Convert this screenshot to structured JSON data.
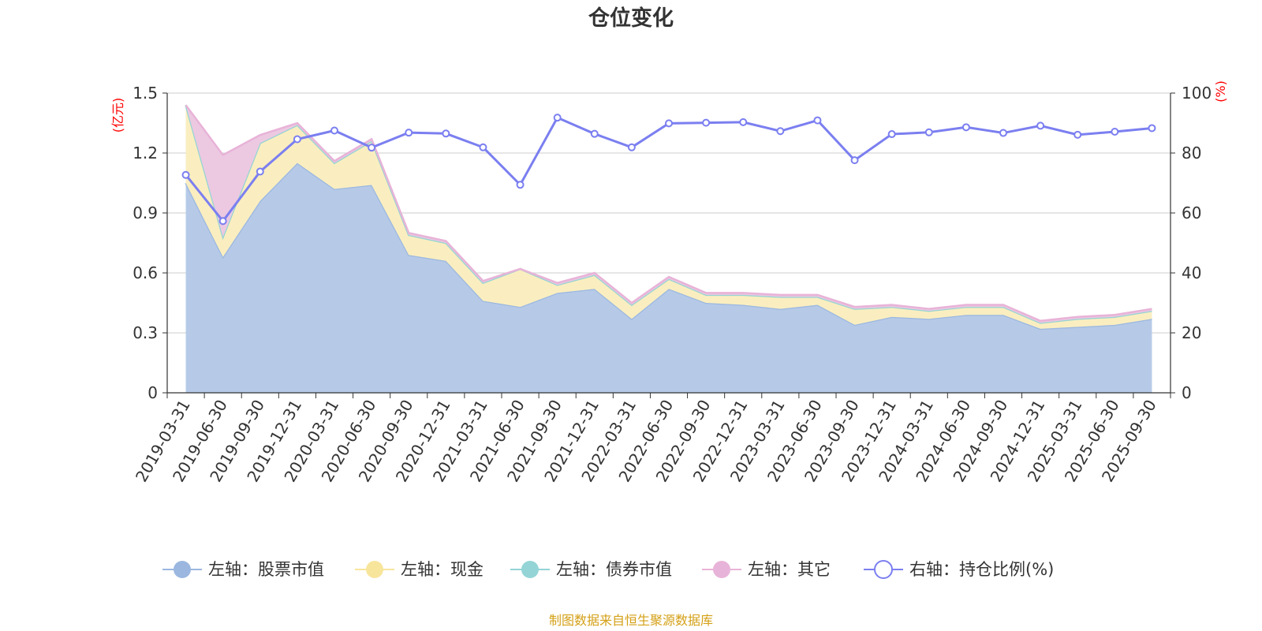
{
  "chart_data": {
    "type": "area",
    "title": "仓位变化",
    "left_axis": {
      "unit": "(亿元)",
      "min": 0,
      "max": 1.5,
      "ticks": [
        "0",
        "0.3",
        "0.6",
        "0.9",
        "1.2",
        "1.5"
      ]
    },
    "right_axis": {
      "unit": "(%)",
      "min": 0,
      "max": 100,
      "ticks": [
        "0",
        "20",
        "40",
        "60",
        "80",
        "100"
      ]
    },
    "categories": [
      "2019-03-31",
      "2019-06-30",
      "2019-09-30",
      "2019-12-31",
      "2020-03-31",
      "2020-06-30",
      "2020-09-30",
      "2020-12-31",
      "2021-03-31",
      "2021-06-30",
      "2021-09-30",
      "2021-12-31",
      "2022-03-31",
      "2022-06-30",
      "2022-09-30",
      "2022-12-31",
      "2023-03-31",
      "2023-06-30",
      "2023-09-30",
      "2023-12-31",
      "2024-03-31",
      "2024-06-30",
      "2024-09-30",
      "2024-12-31",
      "2025-03-31",
      "2025-06-30",
      "2025-09-30"
    ],
    "series": [
      {
        "name": "左轴：股票市值",
        "axis": "left",
        "stack": true,
        "color": "#9bb7e0",
        "fill": "#b6cae8",
        "values": [
          1.05,
          0.68,
          0.96,
          1.15,
          1.02,
          1.04,
          0.69,
          0.66,
          0.46,
          0.43,
          0.5,
          0.52,
          0.37,
          0.52,
          0.45,
          0.44,
          0.42,
          0.44,
          0.34,
          0.38,
          0.37,
          0.39,
          0.39,
          0.32,
          0.33,
          0.34,
          0.37
        ]
      },
      {
        "name": "左轴：现金",
        "axis": "left",
        "stack": true,
        "color": "#f8e59c",
        "fill": "#faeec0",
        "values": [
          0.39,
          0.1,
          0.29,
          0.19,
          0.13,
          0.22,
          0.1,
          0.09,
          0.09,
          0.19,
          0.04,
          0.07,
          0.07,
          0.05,
          0.04,
          0.05,
          0.06,
          0.04,
          0.08,
          0.05,
          0.04,
          0.04,
          0.04,
          0.03,
          0.04,
          0.04,
          0.04
        ]
      },
      {
        "name": "左轴：债券市值",
        "axis": "left",
        "stack": true,
        "color": "#94d4d6",
        "fill": "#bfe4e4",
        "values": [
          0,
          0,
          0,
          0,
          0,
          0,
          0,
          0,
          0,
          0,
          0,
          0,
          0,
          0,
          0,
          0,
          0,
          0,
          0,
          0,
          0,
          0,
          0,
          0,
          0,
          0,
          0
        ]
      },
      {
        "name": "左轴：其它",
        "axis": "left",
        "stack": true,
        "color": "#e8b3d8",
        "fill": "#ecc9e1",
        "values": [
          0,
          0.41,
          0.04,
          0.01,
          0.01,
          0.01,
          0.01,
          0.01,
          0.01,
          0,
          0.01,
          0.01,
          0.01,
          0.01,
          0.01,
          0.01,
          0.01,
          0.01,
          0.01,
          0.01,
          0.01,
          0.01,
          0.01,
          0.01,
          0.01,
          0.01,
          0.01
        ]
      },
      {
        "name": "右轴：持仓比例(%)",
        "axis": "right",
        "stack": false,
        "color": "#7b7ff0",
        "values": [
          72.7,
          57.3,
          73.8,
          84.6,
          87.5,
          81.8,
          86.8,
          86.5,
          81.9,
          69.4,
          91.8,
          86.4,
          81.9,
          89.9,
          90.1,
          90.3,
          87.3,
          90.9,
          77.6,
          86.3,
          86.9,
          88.6,
          86.7,
          89.1,
          86.1,
          87.1,
          88.3
        ]
      }
    ],
    "legend": "bottom-center",
    "source": "制图数据来自恒生聚源数据库"
  },
  "colors": {
    "title": "#333333",
    "axis_unit": "#ff0000",
    "source": "#d4a017",
    "grid": "#cccccc"
  }
}
